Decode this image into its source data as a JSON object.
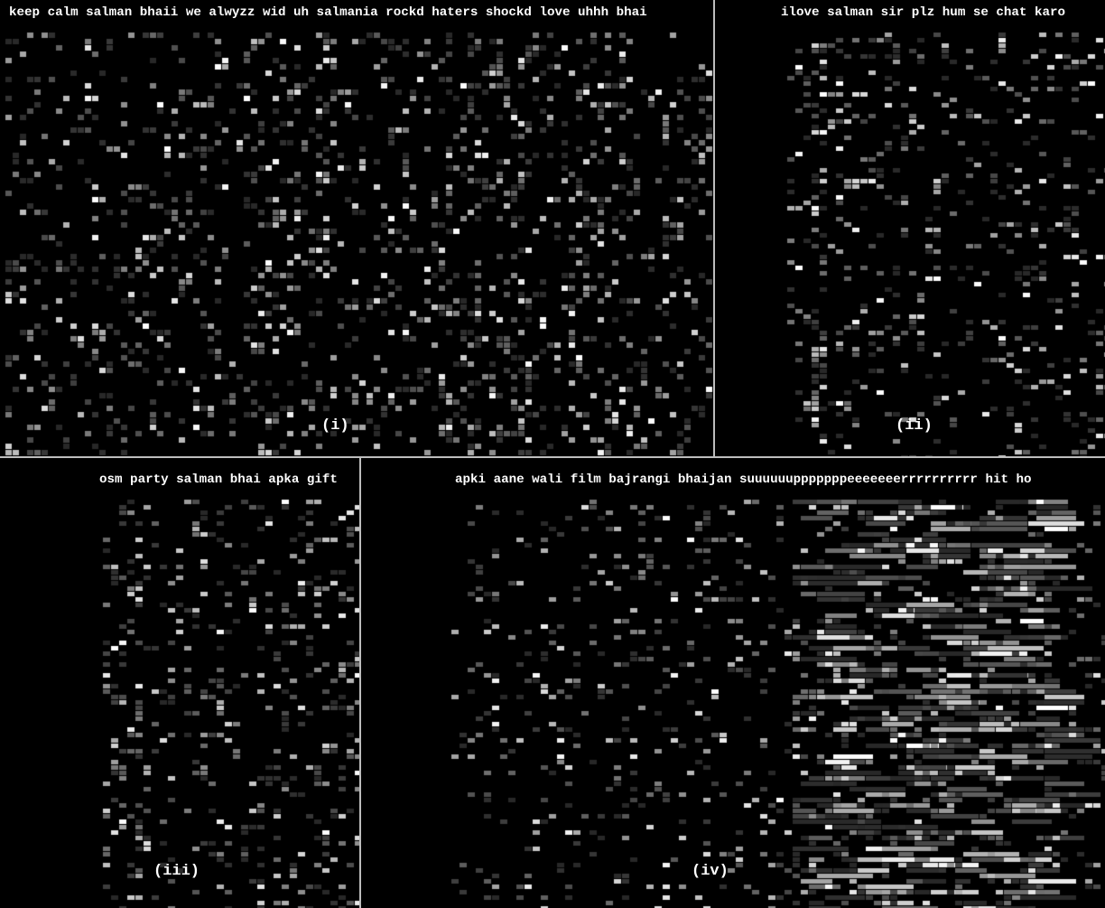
{
  "panels": [
    {
      "id": "i",
      "caption": "keep calm salman bhaii we alwyzz wid uh salmania rockd haters shockd love uhhh bhai",
      "label": "(i)"
    },
    {
      "id": "ii",
      "caption": "ilove salman sir plz hum se chat karo",
      "label": "(ii)"
    },
    {
      "id": "iii",
      "caption": "osm party salman bhai apka gift",
      "label": "(iii)"
    },
    {
      "id": "iv",
      "caption": "apki aane wali film bajrangi bhaijan suuuuuupppppppeeeeeeerrrrrrrrrr hit ho",
      "label": "(iv)"
    }
  ],
  "colors": {
    "background": "#000000",
    "divider": "#bdbdbd",
    "text": "#ffffff"
  }
}
